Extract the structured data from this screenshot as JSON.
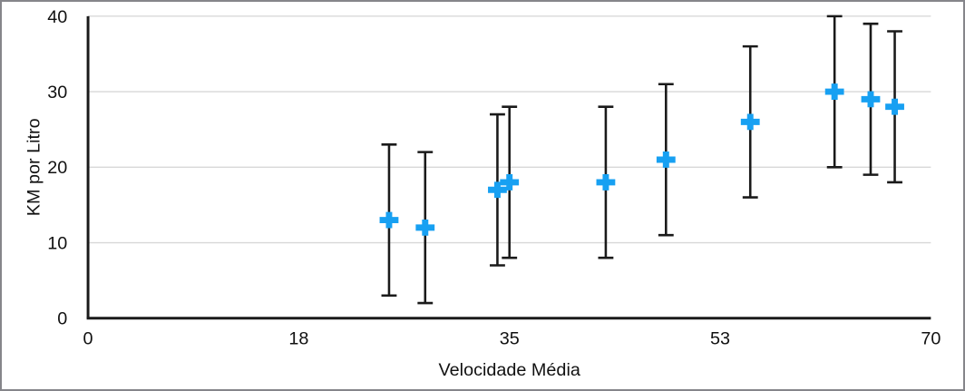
{
  "chart_data": {
    "type": "scatter",
    "title": "",
    "xlabel": "Velocidade Média",
    "ylabel": "KM por Litro",
    "xlim": [
      0,
      70
    ],
    "ylim": [
      0,
      40
    ],
    "x_ticks": [
      {
        "v": 0,
        "label": "0"
      },
      {
        "v": 17.5,
        "label": "18"
      },
      {
        "v": 35,
        "label": "35"
      },
      {
        "v": 52.5,
        "label": "53"
      },
      {
        "v": 70,
        "label": "70"
      }
    ],
    "y_ticks": [
      {
        "v": 0,
        "label": "0"
      },
      {
        "v": 10,
        "label": "10"
      },
      {
        "v": 20,
        "label": "20"
      },
      {
        "v": 30,
        "label": "30"
      },
      {
        "v": 40,
        "label": "40"
      }
    ],
    "grid": "horizontal",
    "legend_position": "none",
    "series": [
      {
        "name": "KM por Litro",
        "marker": "plus",
        "marker_color": "#17A0F2",
        "error_bars": {
          "mode": "fixed",
          "plus": 10,
          "minus": 10,
          "color": "#1A1A1A"
        },
        "points": [
          {
            "x": 25,
            "y": 13
          },
          {
            "x": 28,
            "y": 12
          },
          {
            "x": 34,
            "y": 17
          },
          {
            "x": 35,
            "y": 18
          },
          {
            "x": 43,
            "y": 18
          },
          {
            "x": 48,
            "y": 21
          },
          {
            "x": 55,
            "y": 26
          },
          {
            "x": 62,
            "y": 30
          },
          {
            "x": 65,
            "y": 29
          },
          {
            "x": 67,
            "y": 28
          }
        ]
      }
    ],
    "colors": {
      "axis": "#1A1A1A",
      "grid": "#D8D8D8",
      "tick_text": "#111111"
    }
  }
}
